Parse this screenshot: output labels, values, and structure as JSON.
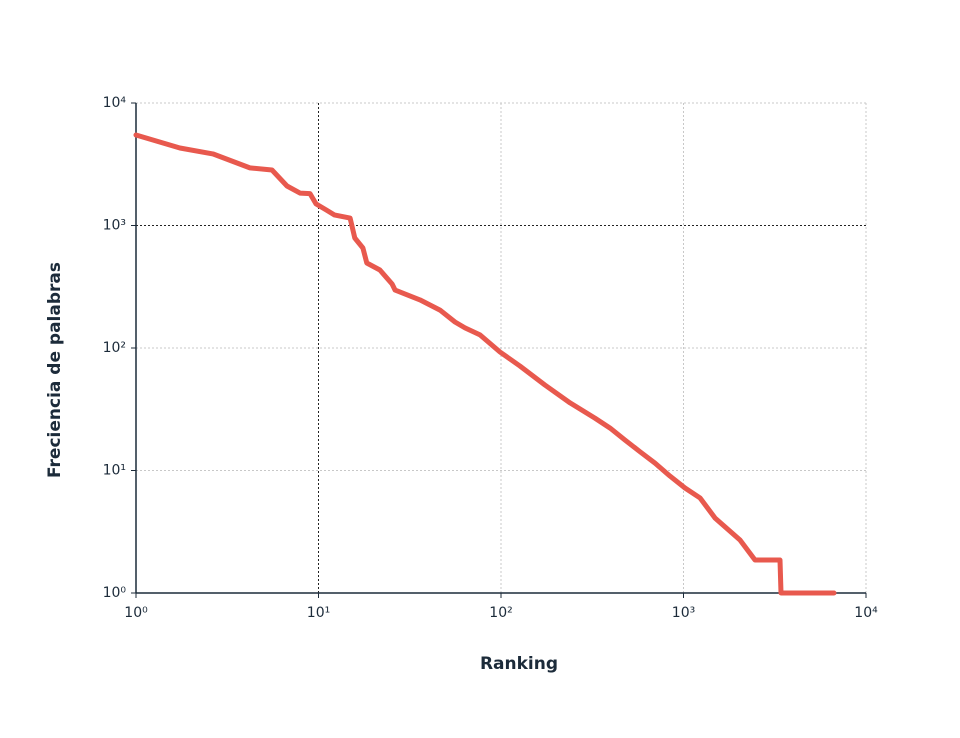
{
  "chart_data": {
    "type": "line",
    "xlabel": "Ranking",
    "ylabel": "Freciencia de palabras",
    "xscale": "log",
    "yscale": "log",
    "grid": true,
    "emphasis_lines": {
      "x": 10,
      "y": 1000
    },
    "x": [
      1,
      1.74,
      2.64,
      4.21,
      5.56,
      6.72,
      7.92,
      8.98,
      9.69,
      11.0,
      12.2,
      14.9,
      15.8,
      17.5,
      18.4,
      21.7,
      25.3,
      26.3,
      36.0,
      46.3,
      56.0,
      63.5,
      76.7,
      98.8,
      127,
      174,
      239,
      327,
      396,
      478,
      578,
      698,
      843,
      1019,
      1231,
      1489,
      2040,
      2466,
      3380,
      3420,
      6680
    ],
    "series": [
      {
        "color": "#e8594e",
        "values": [
          5480,
          4290,
          3840,
          2950,
          2840,
          2100,
          1840,
          1820,
          1500,
          1340,
          1220,
          1150,
          791,
          655,
          494,
          433,
          333,
          297,
          247,
          204,
          163,
          146,
          128,
          92.7,
          71.3,
          49.9,
          35.6,
          26.8,
          22.2,
          17.7,
          14.2,
          11.5,
          9.0,
          7.2,
          5.97,
          4.09,
          2.71,
          1.86,
          1.86,
          1,
          1
        ]
      }
    ],
    "xlim": [
      1,
      10000
    ],
    "ylim": [
      1,
      10000
    ],
    "xticks": [
      {
        "value": 1,
        "label": "10⁰"
      },
      {
        "value": 10,
        "label": "10¹"
      },
      {
        "value": 100,
        "label": "10²"
      },
      {
        "value": 1000,
        "label": "10³"
      },
      {
        "value": 10000,
        "label": "10⁴"
      }
    ],
    "yticks": [
      {
        "value": 1,
        "label": "10⁰"
      },
      {
        "value": 10,
        "label": "10¹"
      },
      {
        "value": 100,
        "label": "10²"
      },
      {
        "value": 1000,
        "label": "10³"
      },
      {
        "value": 10000,
        "label": "10⁴"
      }
    ]
  }
}
